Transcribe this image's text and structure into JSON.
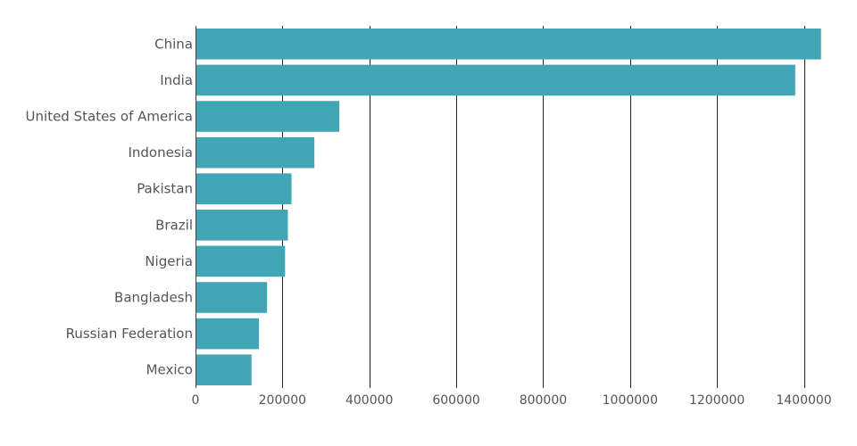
{
  "chart_data": {
    "type": "bar",
    "orientation": "horizontal",
    "categories": [
      "China",
      "India",
      "United States of America",
      "Indonesia",
      "Pakistan",
      "Brazil",
      "Nigeria",
      "Bangladesh",
      "Russian Federation",
      "Mexico"
    ],
    "values": [
      1439324,
      1380004,
      331003,
      273524,
      220892,
      212559,
      206140,
      164689,
      145934,
      128933
    ],
    "xlim": [
      0,
      1440000
    ],
    "xticks": [
      0,
      200000,
      400000,
      600000,
      800000,
      1000000,
      1200000,
      1400000
    ],
    "xtick_labels": [
      "0",
      "200000",
      "400000",
      "600000",
      "800000",
      "1000000",
      "1200000",
      "1400000"
    ],
    "grid": "vertical",
    "title": "",
    "xlabel": "",
    "ylabel": "",
    "colors": {
      "bar": "#42a5b3",
      "grid": "#222222",
      "axis": "#444444",
      "text": "#555555"
    }
  }
}
